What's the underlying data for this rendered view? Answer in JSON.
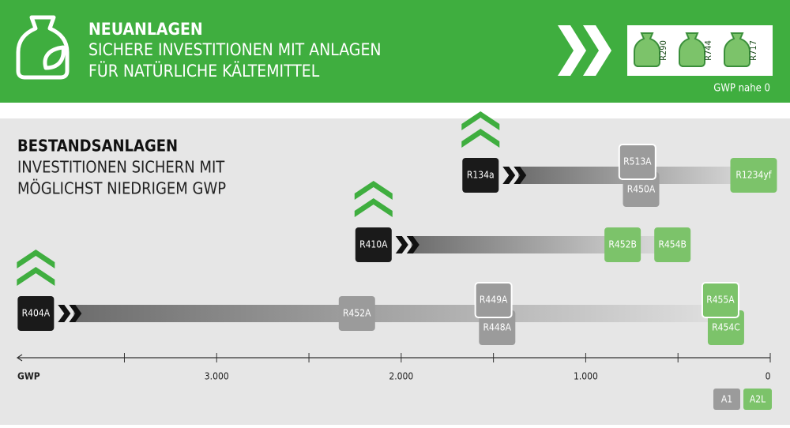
{
  "header": {
    "title": "NEUANLAGEN",
    "lines": [
      "SICHERE INVESTITIONEN MIT ANLAGEN",
      "FÜR NATÜRLICHE KÄLTEMITTEL"
    ],
    "refrigerants": [
      "R290",
      "R744",
      "R717"
    ],
    "note": "GWP nahe 0"
  },
  "section": {
    "title": "BESTANDSANLAGEN",
    "lines": [
      "INVESTITIONEN SICHERN MIT",
      "MÖGLICHST NIEDRIGEM GWP"
    ]
  },
  "axis": {
    "label": "GWP",
    "xlim": [
      4080,
      0
    ],
    "ticks": [
      {
        "value": 3000,
        "label": "3.000"
      },
      {
        "value": 2000,
        "label": "2.000"
      },
      {
        "value": 1000,
        "label": "1.000"
      },
      0
    ],
    "minor_ticks": [
      3500,
      2500,
      1500,
      500
    ]
  },
  "classes": [
    {
      "name": "A1",
      "color": "#9b9b9b"
    },
    {
      "name": "A2L",
      "color": "#7cc36a"
    }
  ],
  "rows": [
    {
      "start": {
        "label": "R134a",
        "gwp": 1570
      },
      "items": [
        {
          "label": "R513A",
          "gwp": 720,
          "color": "#9b9b9b"
        },
        {
          "label": "R450A",
          "gwp": 700,
          "color": "#9b9b9b"
        },
        {
          "label": "R1234yf",
          "gwp": 90,
          "color": "#7cc36a"
        }
      ]
    },
    {
      "start": {
        "label": "R410A",
        "gwp": 2150
      },
      "items": [
        {
          "label": "R452B",
          "gwp": 800,
          "color": "#7cc36a"
        },
        {
          "label": "R454B",
          "gwp": 530,
          "color": "#7cc36a"
        }
      ]
    },
    {
      "start": {
        "label": "R404A",
        "gwp": 3980
      },
      "items": [
        {
          "label": "R452A",
          "gwp": 2240,
          "color": "#9b9b9b"
        },
        {
          "label": "R449A",
          "gwp": 1500,
          "color": "#9b9b9b"
        },
        {
          "label": "R448A",
          "gwp": 1480,
          "color": "#9b9b9b"
        },
        {
          "label": "R455A",
          "gwp": 270,
          "color": "#7cc36a"
        },
        {
          "label": "R454C",
          "gwp": 240,
          "color": "#7cc36a"
        }
      ]
    }
  ]
}
